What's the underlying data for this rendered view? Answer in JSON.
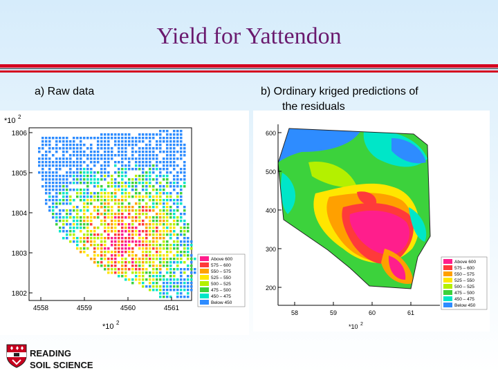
{
  "slide": {
    "title": "Yield for Yattendon"
  },
  "panel_a": {
    "caption": "a) Raw data",
    "y_multiplier": "*10",
    "y_multiplier_exp": "2",
    "x_multiplier": "*10",
    "x_multiplier_exp": "2",
    "y_ticks": [
      "1806",
      "1805",
      "1804",
      "1803",
      "1802"
    ],
    "x_ticks": [
      "4558",
      "4559",
      "4560",
      "4561"
    ],
    "legend": [
      {
        "label": "Above  600",
        "color": "#ff1e8c"
      },
      {
        "label": "575 – 600",
        "color": "#ff3a3a"
      },
      {
        "label": "550 – 575",
        "color": "#ffa000"
      },
      {
        "label": "525 – 550",
        "color": "#ffe600"
      },
      {
        "label": "500 – 525",
        "color": "#b4f000"
      },
      {
        "label": "475 – 500",
        "color": "#3cd23c"
      },
      {
        "label": "450 – 475",
        "color": "#00e6c8"
      },
      {
        "label": "Below  450",
        "color": "#2e8cff"
      }
    ]
  },
  "panel_b": {
    "caption_line1": "b) Ordinary kriged predictions of",
    "caption_line2": "the residuals",
    "x_multiplier": "*10",
    "x_multiplier_exp": "2",
    "y_ticks": [
      "600",
      "500",
      "400",
      "300",
      "200"
    ],
    "x_ticks": [
      "58",
      "59",
      "60",
      "61"
    ],
    "legend": [
      {
        "label": "Above  600",
        "color": "#ff1e8c"
      },
      {
        "label": "575 – 600",
        "color": "#ff3a3a"
      },
      {
        "label": "550 – 575",
        "color": "#ffa000"
      },
      {
        "label": "525 – 550",
        "color": "#ffe600"
      },
      {
        "label": "500 – 525",
        "color": "#b4f000"
      },
      {
        "label": "475 – 500",
        "color": "#3cd23c"
      },
      {
        "label": "450 – 475",
        "color": "#00e6c8"
      },
      {
        "label": "Below  450",
        "color": "#2e8cff"
      }
    ]
  },
  "branding": {
    "line1": "READING",
    "line2": "SOIL SCIENCE",
    "logo_icon": "university-crest-icon"
  }
}
